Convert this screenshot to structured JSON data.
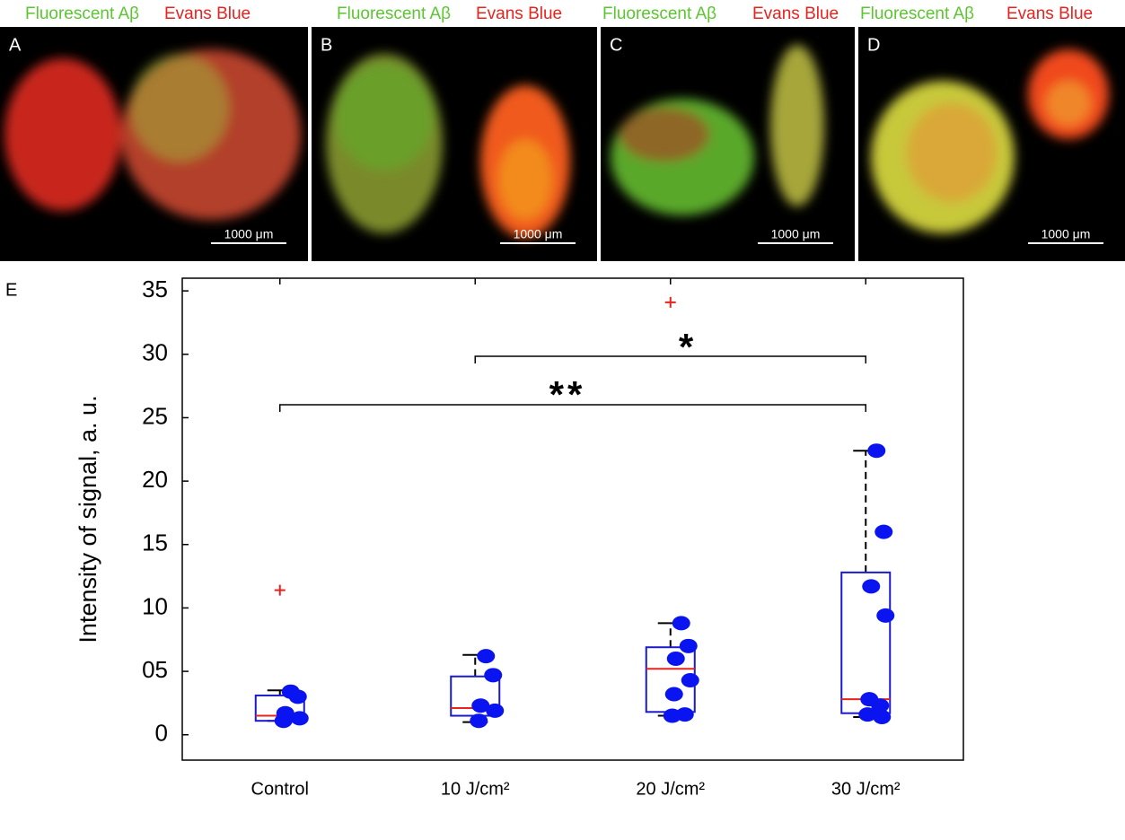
{
  "panels": [
    {
      "label": "A",
      "left": "Fluorescent Aβ",
      "right": "Evans Blue",
      "scale": "1000 μm"
    },
    {
      "label": "B",
      "left": "Fluorescent Aβ",
      "right": "Evans Blue",
      "scale": "1000 μm"
    },
    {
      "label": "C",
      "left": "Fluorescent Aβ",
      "right": "Evans Blue",
      "scale": "1000 μm"
    },
    {
      "label": "D",
      "left": "Fluorescent Aβ",
      "right": "Evans Blue",
      "scale": "1000 μm"
    }
  ],
  "chart_data": {
    "type": "box",
    "panel_label": "E",
    "ylabel": "Intensity of signal, a. u.",
    "categories": [
      "Control",
      "10 J/cm²",
      "20 J/cm²",
      "30 J/cm²"
    ],
    "whisker_low": [
      1.1,
      1.0,
      1.5,
      1.4
    ],
    "q1": [
      1.1,
      1.5,
      1.8,
      1.7
    ],
    "median": [
      1.5,
      2.1,
      5.2,
      2.8
    ],
    "q3": [
      3.1,
      4.6,
      6.9,
      12.8
    ],
    "whisker_high": [
      3.5,
      6.3,
      8.8,
      22.4
    ],
    "outliers": [
      [
        11.4
      ],
      [],
      [
        34.1
      ],
      []
    ],
    "points": [
      [
        3.4,
        3.0,
        1.7,
        1.3,
        1.1
      ],
      [
        6.2,
        4.7,
        2.3,
        1.9,
        1.1
      ],
      [
        8.8,
        7.0,
        6.0,
        4.3,
        3.2,
        1.6,
        1.5
      ],
      [
        22.4,
        16.0,
        11.7,
        9.4,
        2.8,
        2.3,
        1.6,
        1.4
      ]
    ],
    "significance": [
      "*",
      "**"
    ],
    "box_color": "#1a1acc",
    "median_color": "#e8231f",
    "point_color": "#0a14f0",
    "outlier_color": "#e8231f",
    "ylim": [
      -2,
      36
    ],
    "yticks": [
      0,
      {
        "value": 5,
        "label": "05"
      },
      10,
      15,
      20,
      25,
      30,
      35
    ]
  }
}
